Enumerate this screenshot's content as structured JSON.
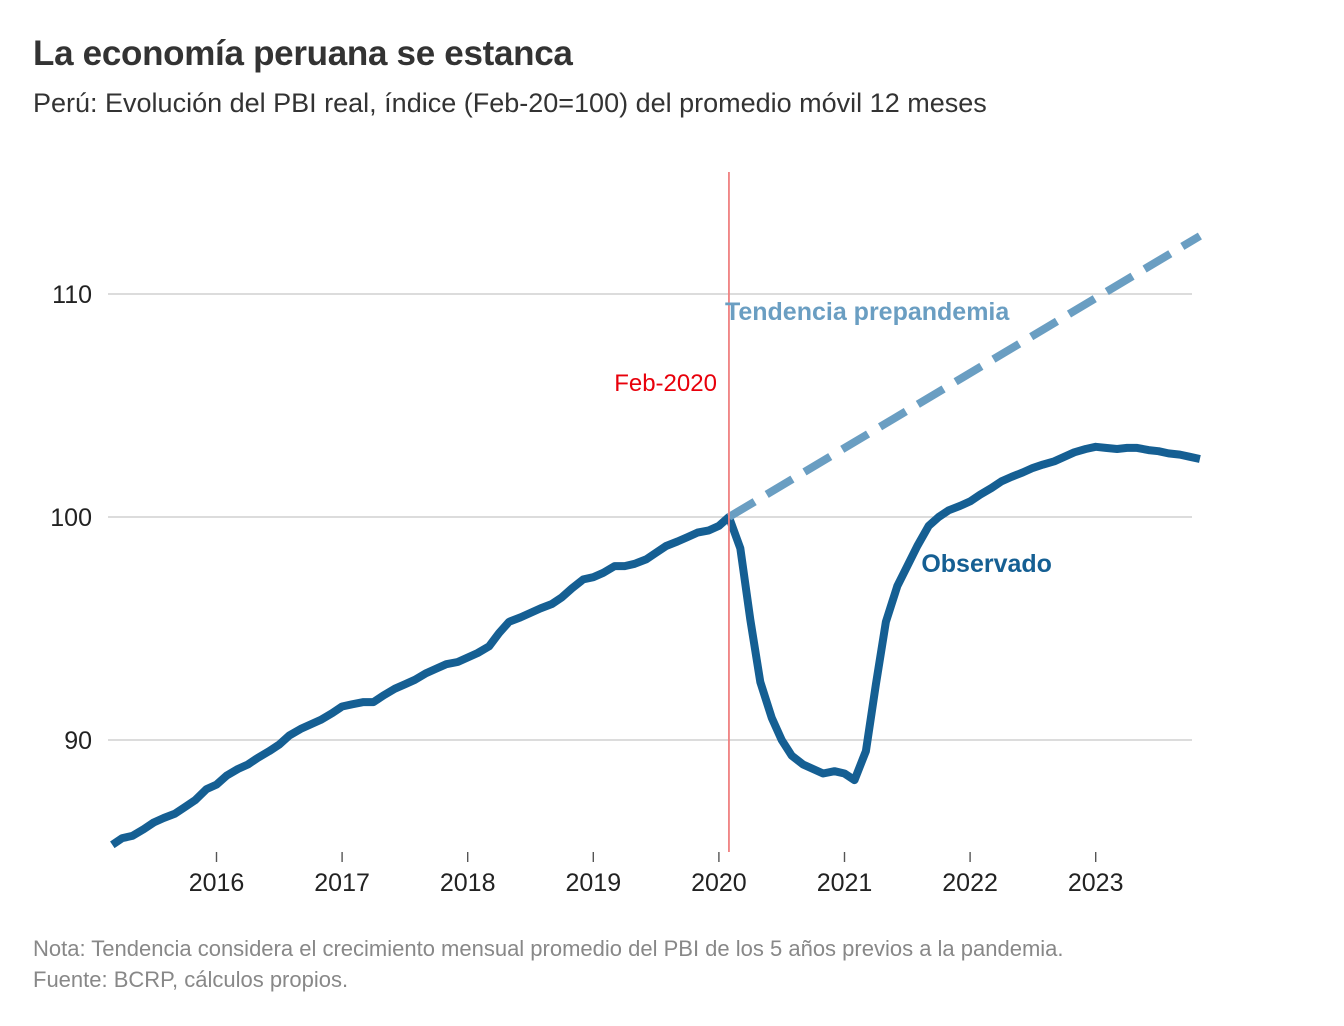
{
  "header": {
    "title": "La economía peruana se estanca",
    "subtitle": "Perú: Evolución del PBI real, índice (Feb-20=100) del promedio móvil 12 meses"
  },
  "footer": {
    "note": "Nota: Tendencia considera el crecimiento mensual promedio del PBI de los 5 años previos a la pandemia.",
    "source": "Fuente: BCRP, cálculos propios."
  },
  "chart_data": {
    "type": "line",
    "title": "La economía peruana se estanca",
    "subtitle": "Perú: Evolución del PBI real, índice (Feb-20=100) del promedio móvil 12 meses",
    "xlabel": "",
    "ylabel": "",
    "xlim": [
      2015.17,
      2023.83
    ],
    "ylim": [
      85,
      116
    ],
    "xticks": [
      2016,
      2017,
      2018,
      2019,
      2020,
      2021,
      2022,
      2023
    ],
    "xtick_labels": [
      "2016",
      "2017",
      "2018",
      "2019",
      "2020",
      "2021",
      "2022",
      "2023"
    ],
    "yticks": [
      90,
      100,
      110
    ],
    "ytick_labels": [
      "90",
      "100",
      "110"
    ],
    "grid": "horizontal",
    "legend": "none",
    "series": [
      {
        "name": "Observado",
        "color": "#155f93",
        "style": "solid",
        "points": [
          [
            2015.17,
            85.3
          ],
          [
            2015.25,
            85.6
          ],
          [
            2015.33,
            85.7
          ],
          [
            2015.42,
            86.0
          ],
          [
            2015.5,
            86.3
          ],
          [
            2015.58,
            86.5
          ],
          [
            2015.67,
            86.7
          ],
          [
            2015.75,
            87.0
          ],
          [
            2015.83,
            87.3
          ],
          [
            2015.92,
            87.8
          ],
          [
            2016.0,
            88.0
          ],
          [
            2016.08,
            88.4
          ],
          [
            2016.17,
            88.7
          ],
          [
            2016.25,
            88.9
          ],
          [
            2016.33,
            89.2
          ],
          [
            2016.42,
            89.5
          ],
          [
            2016.5,
            89.8
          ],
          [
            2016.58,
            90.2
          ],
          [
            2016.67,
            90.5
          ],
          [
            2016.75,
            90.7
          ],
          [
            2016.83,
            90.9
          ],
          [
            2016.92,
            91.2
          ],
          [
            2017.0,
            91.5
          ],
          [
            2017.08,
            91.6
          ],
          [
            2017.17,
            91.7
          ],
          [
            2017.25,
            91.7
          ],
          [
            2017.33,
            92.0
          ],
          [
            2017.42,
            92.3
          ],
          [
            2017.5,
            92.5
          ],
          [
            2017.58,
            92.7
          ],
          [
            2017.67,
            93.0
          ],
          [
            2017.75,
            93.2
          ],
          [
            2017.83,
            93.4
          ],
          [
            2017.92,
            93.5
          ],
          [
            2018.0,
            93.7
          ],
          [
            2018.08,
            93.9
          ],
          [
            2018.17,
            94.2
          ],
          [
            2018.25,
            94.8
          ],
          [
            2018.33,
            95.3
          ],
          [
            2018.42,
            95.5
          ],
          [
            2018.5,
            95.7
          ],
          [
            2018.58,
            95.9
          ],
          [
            2018.67,
            96.1
          ],
          [
            2018.75,
            96.4
          ],
          [
            2018.83,
            96.8
          ],
          [
            2018.92,
            97.2
          ],
          [
            2019.0,
            97.3
          ],
          [
            2019.08,
            97.5
          ],
          [
            2019.17,
            97.8
          ],
          [
            2019.25,
            97.8
          ],
          [
            2019.33,
            97.9
          ],
          [
            2019.42,
            98.1
          ],
          [
            2019.5,
            98.4
          ],
          [
            2019.58,
            98.7
          ],
          [
            2019.67,
            98.9
          ],
          [
            2019.75,
            99.1
          ],
          [
            2019.83,
            99.3
          ],
          [
            2019.92,
            99.4
          ],
          [
            2020.0,
            99.6
          ],
          [
            2020.08,
            100.0
          ],
          [
            2020.17,
            98.6
          ],
          [
            2020.25,
            95.4
          ],
          [
            2020.33,
            92.6
          ],
          [
            2020.42,
            91.0
          ],
          [
            2020.5,
            90.0
          ],
          [
            2020.58,
            89.3
          ],
          [
            2020.67,
            88.9
          ],
          [
            2020.75,
            88.7
          ],
          [
            2020.83,
            88.5
          ],
          [
            2020.92,
            88.6
          ],
          [
            2021.0,
            88.5
          ],
          [
            2021.08,
            88.2
          ],
          [
            2021.17,
            89.5
          ],
          [
            2021.25,
            92.5
          ],
          [
            2021.33,
            95.3
          ],
          [
            2021.42,
            96.9
          ],
          [
            2021.5,
            97.8
          ],
          [
            2021.58,
            98.7
          ],
          [
            2021.67,
            99.6
          ],
          [
            2021.75,
            100.0
          ],
          [
            2021.83,
            100.3
          ],
          [
            2021.92,
            100.5
          ],
          [
            2022.0,
            100.7
          ],
          [
            2022.08,
            101.0
          ],
          [
            2022.17,
            101.3
          ],
          [
            2022.25,
            101.6
          ],
          [
            2022.33,
            101.8
          ],
          [
            2022.42,
            102.0
          ],
          [
            2022.5,
            102.2
          ],
          [
            2022.58,
            102.35
          ],
          [
            2022.67,
            102.5
          ],
          [
            2022.75,
            102.7
          ],
          [
            2022.83,
            102.9
          ],
          [
            2022.92,
            103.05
          ],
          [
            2023.0,
            103.15
          ],
          [
            2023.08,
            103.1
          ],
          [
            2023.17,
            103.05
          ],
          [
            2023.25,
            103.1
          ],
          [
            2023.33,
            103.1
          ],
          [
            2023.42,
            103.0
          ],
          [
            2023.5,
            102.95
          ],
          [
            2023.58,
            102.85
          ],
          [
            2023.67,
            102.8
          ],
          [
            2023.75,
            102.7
          ],
          [
            2023.83,
            102.6
          ]
        ]
      },
      {
        "name": "Tendencia prepandemia",
        "color": "#6a9ec2",
        "style": "dashed",
        "points": [
          [
            2020.08,
            100.0
          ],
          [
            2023.83,
            112.6
          ]
        ]
      }
    ],
    "annotations": [
      {
        "text": "Feb-2020",
        "x": 2020.08,
        "y": 106.0,
        "color": "#e8000b",
        "type": "vline"
      },
      {
        "text": "Tendencia prepandemia",
        "x": 2020.08,
        "y": 109.2,
        "color": "#6a9ec2"
      },
      {
        "text": "Observado",
        "x": 2021.58,
        "y": 97.9,
        "color": "#155f93"
      }
    ]
  }
}
